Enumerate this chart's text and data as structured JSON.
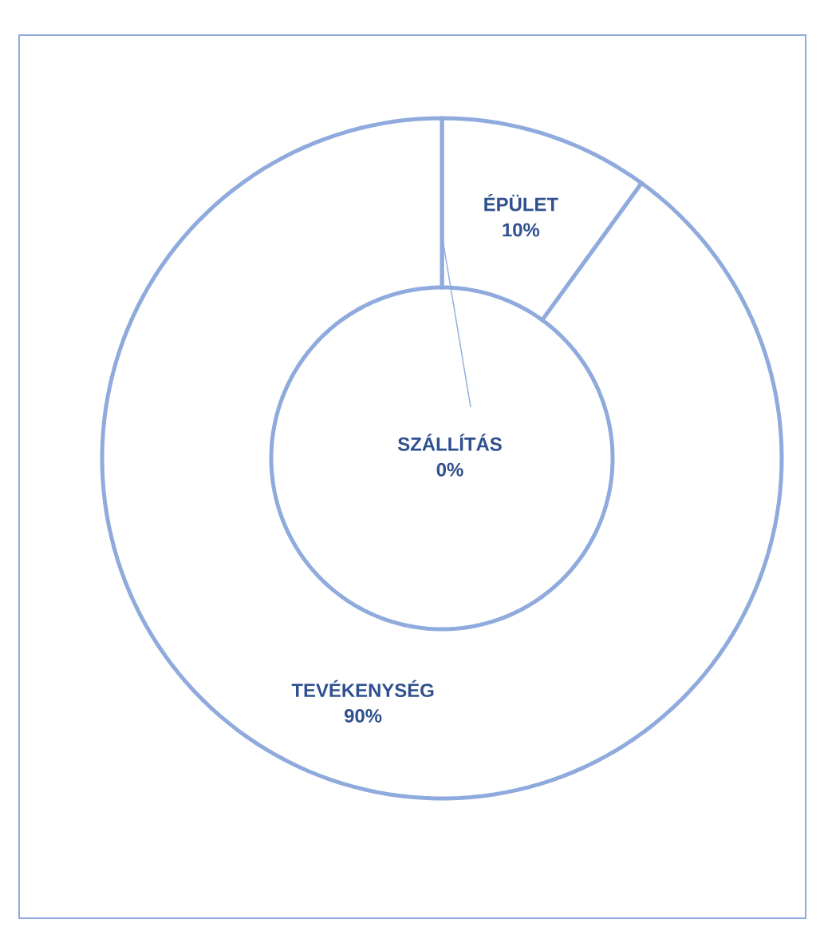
{
  "chart_data": {
    "type": "donut",
    "categories": [
      "SZÁLLÍTÁS",
      "ÉPÜLET",
      "TEVÉKENYSÉG"
    ],
    "values": [
      0,
      10,
      90
    ],
    "colors": [
      "#ffffff",
      "#ffffff",
      "#ffffff"
    ],
    "value_labels": [
      "0%",
      "10%",
      "90%"
    ]
  }
}
